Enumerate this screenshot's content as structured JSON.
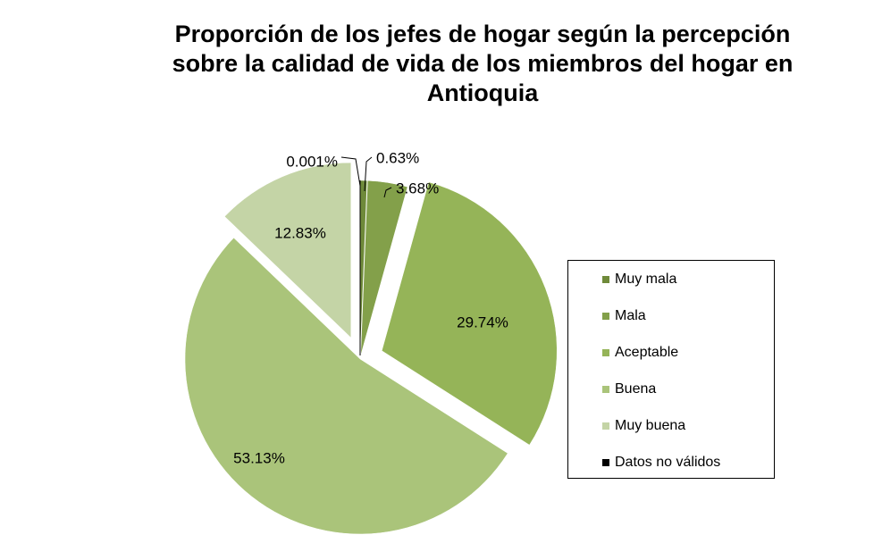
{
  "chart_data": {
    "type": "pie",
    "title_lines": [
      "Proporción de los jefes de hogar según la percepción",
      "sobre la calidad de vida de los miembros del hogar en",
      "Antioquia"
    ],
    "slices": [
      {
        "name": "Muy mala",
        "value": 0.63,
        "label": "0.63%",
        "color": "#6f8a3a"
      },
      {
        "name": "Mala",
        "value": 3.68,
        "label": "3.68%",
        "color": "#83a04a"
      },
      {
        "name": "Aceptable",
        "value": 29.74,
        "label": "29.74%",
        "color": "#95b458"
      },
      {
        "name": "Buena",
        "value": 53.13,
        "label": "53.13%",
        "color": "#aac47a"
      },
      {
        "name": "Muy buena",
        "value": 12.83,
        "label": "12.83%",
        "color": "#c4d4a6"
      },
      {
        "name": "Datos no válidos",
        "value": 0.001,
        "label": "0.001%",
        "color": "#000000"
      }
    ],
    "legend_position": "right"
  }
}
